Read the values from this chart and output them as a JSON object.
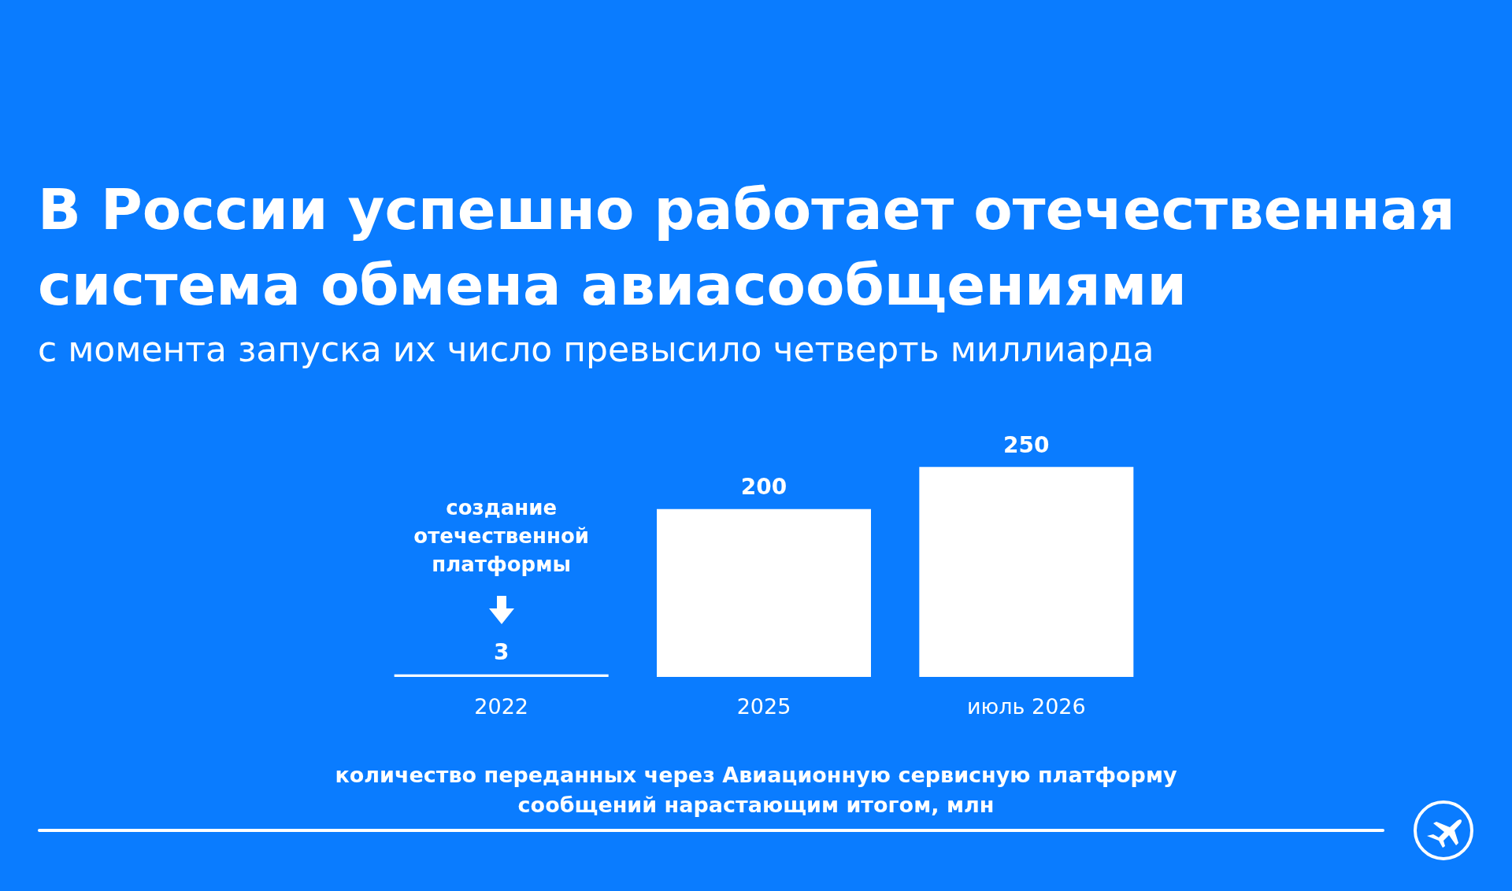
{
  "chart_data": {
    "type": "bar",
    "title": "В России успешно работает отечественная система обмена авиасообщениями",
    "subtitle": "с момента запуска их число превысило четверть миллиарда",
    "xlabel": "количество переданных через Авиационную сервисную платформу\nсообщений нарастающим итогом, млн",
    "categories": [
      "2022",
      "2025",
      "июль 2026"
    ],
    "values": [
      3,
      200,
      250
    ],
    "color": "#ffffff",
    "data_labels": true,
    "annotations": [
      "создание\nотечественной\nплатформы"
    ]
  }
}
